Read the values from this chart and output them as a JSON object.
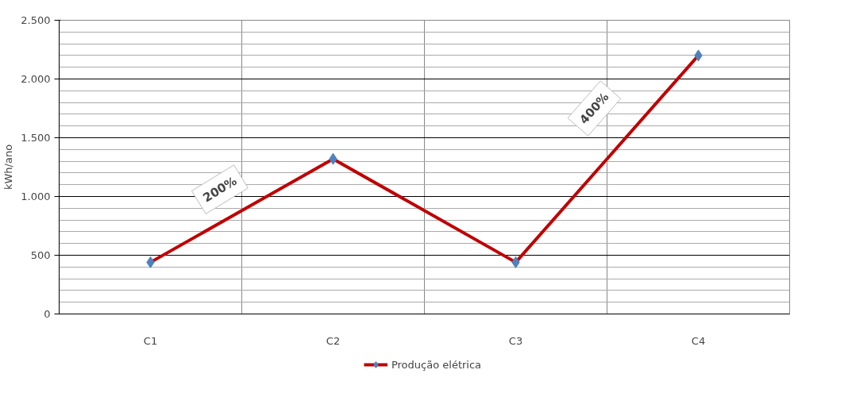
{
  "chart_data": {
    "type": "line",
    "ylabel": "kWh/ano",
    "categories": [
      "C1",
      "C2",
      "C3",
      "C4"
    ],
    "series": [
      {
        "name": "Produção elétrica",
        "color": "#c00000",
        "values": [
          440,
          1320,
          440,
          2200
        ]
      }
    ],
    "ylim": [
      0,
      2500
    ],
    "yticks": [
      0,
      500,
      {
        "value": 1000,
        "label": "1.000"
      },
      {
        "value": 1500,
        "label": "1.500"
      },
      {
        "value": 2000,
        "label": "2.000"
      },
      {
        "value": 2500,
        "label": "2.500"
      }
    ],
    "annotations": [
      "200%",
      "400%"
    ],
    "grid": true,
    "legend": "bottom",
    "marker": "diamond",
    "line_style": "solid"
  }
}
